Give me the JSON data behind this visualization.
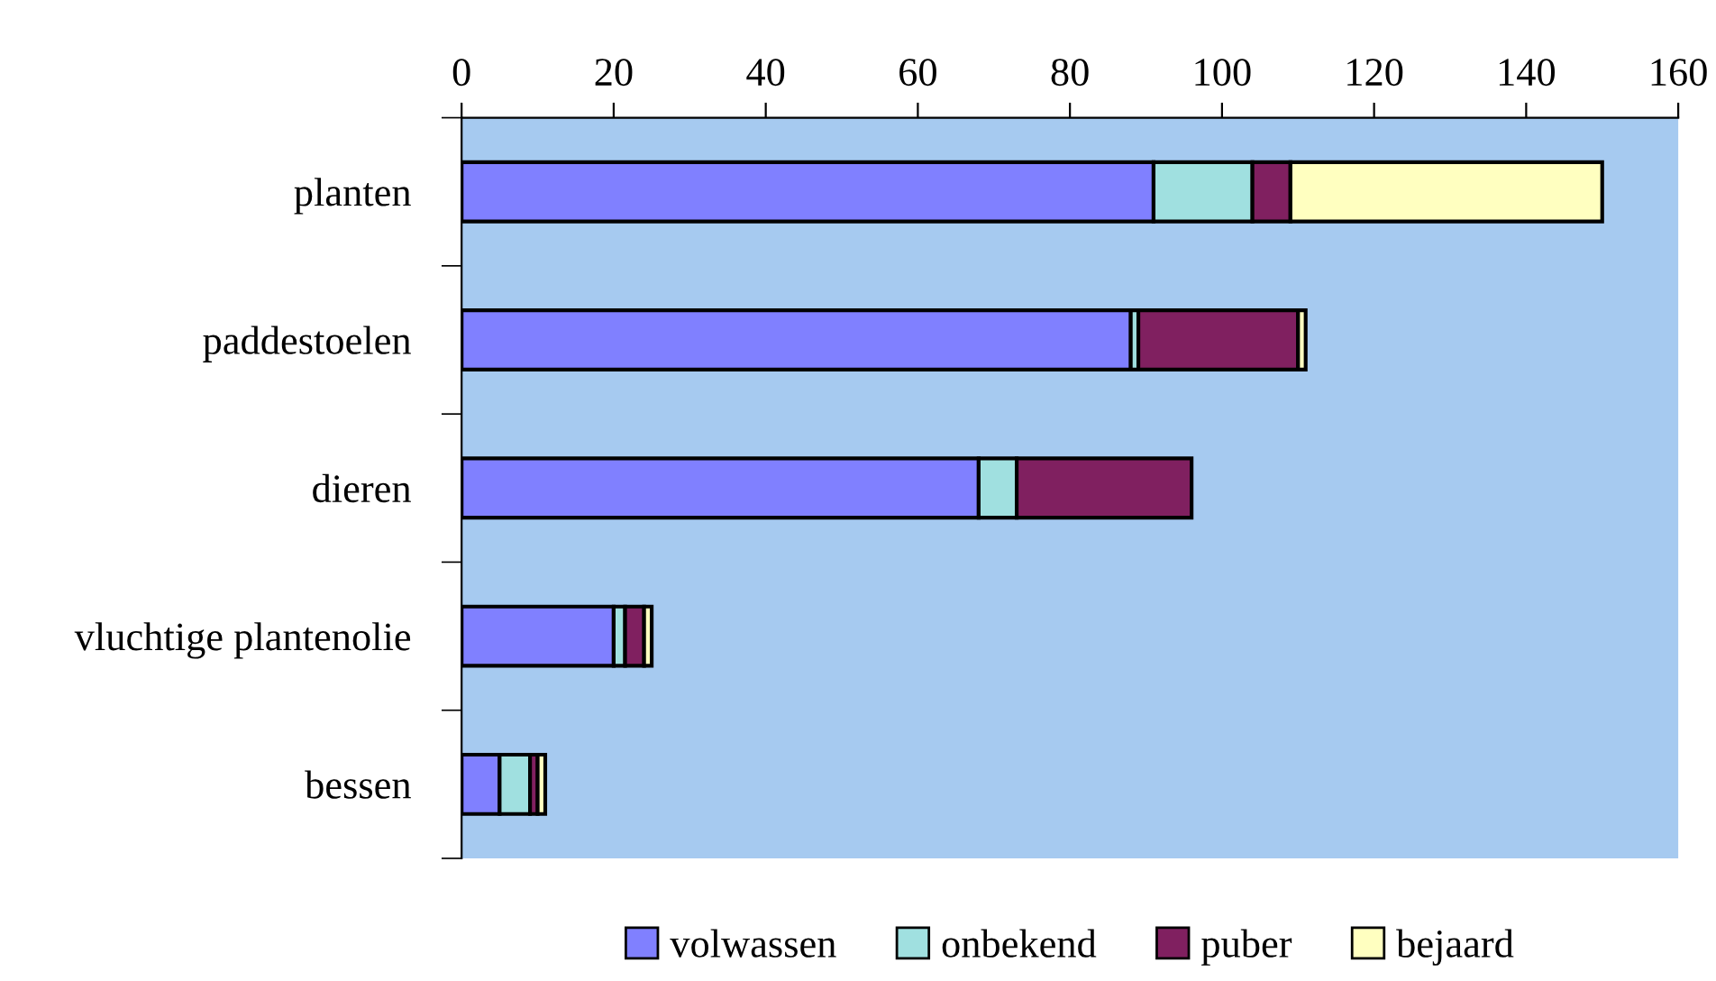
{
  "chart_data": {
    "type": "bar",
    "orientation": "horizontal",
    "stacked": true,
    "categories": [
      "planten",
      "paddestoelen",
      "dieren",
      "vluchtige plantenolie",
      "bessen"
    ],
    "series": [
      {
        "name": "volwassen",
        "color": "#8080ff",
        "values": [
          91,
          88,
          68,
          20,
          5
        ]
      },
      {
        "name": "onbekend",
        "color": "#a0e0e0",
        "values": [
          13,
          1,
          5,
          1.5,
          4
        ]
      },
      {
        "name": "puber",
        "color": "#802060",
        "values": [
          5,
          21,
          23,
          2.5,
          1
        ]
      },
      {
        "name": "bejaard",
        "color": "#ffffc0",
        "values": [
          41,
          1,
          null,
          1,
          1
        ]
      }
    ],
    "xlim": [
      0,
      160
    ],
    "xticks": [
      0,
      20,
      40,
      60,
      80,
      100,
      120,
      140,
      160
    ],
    "grid": false,
    "legend": "bottom"
  }
}
